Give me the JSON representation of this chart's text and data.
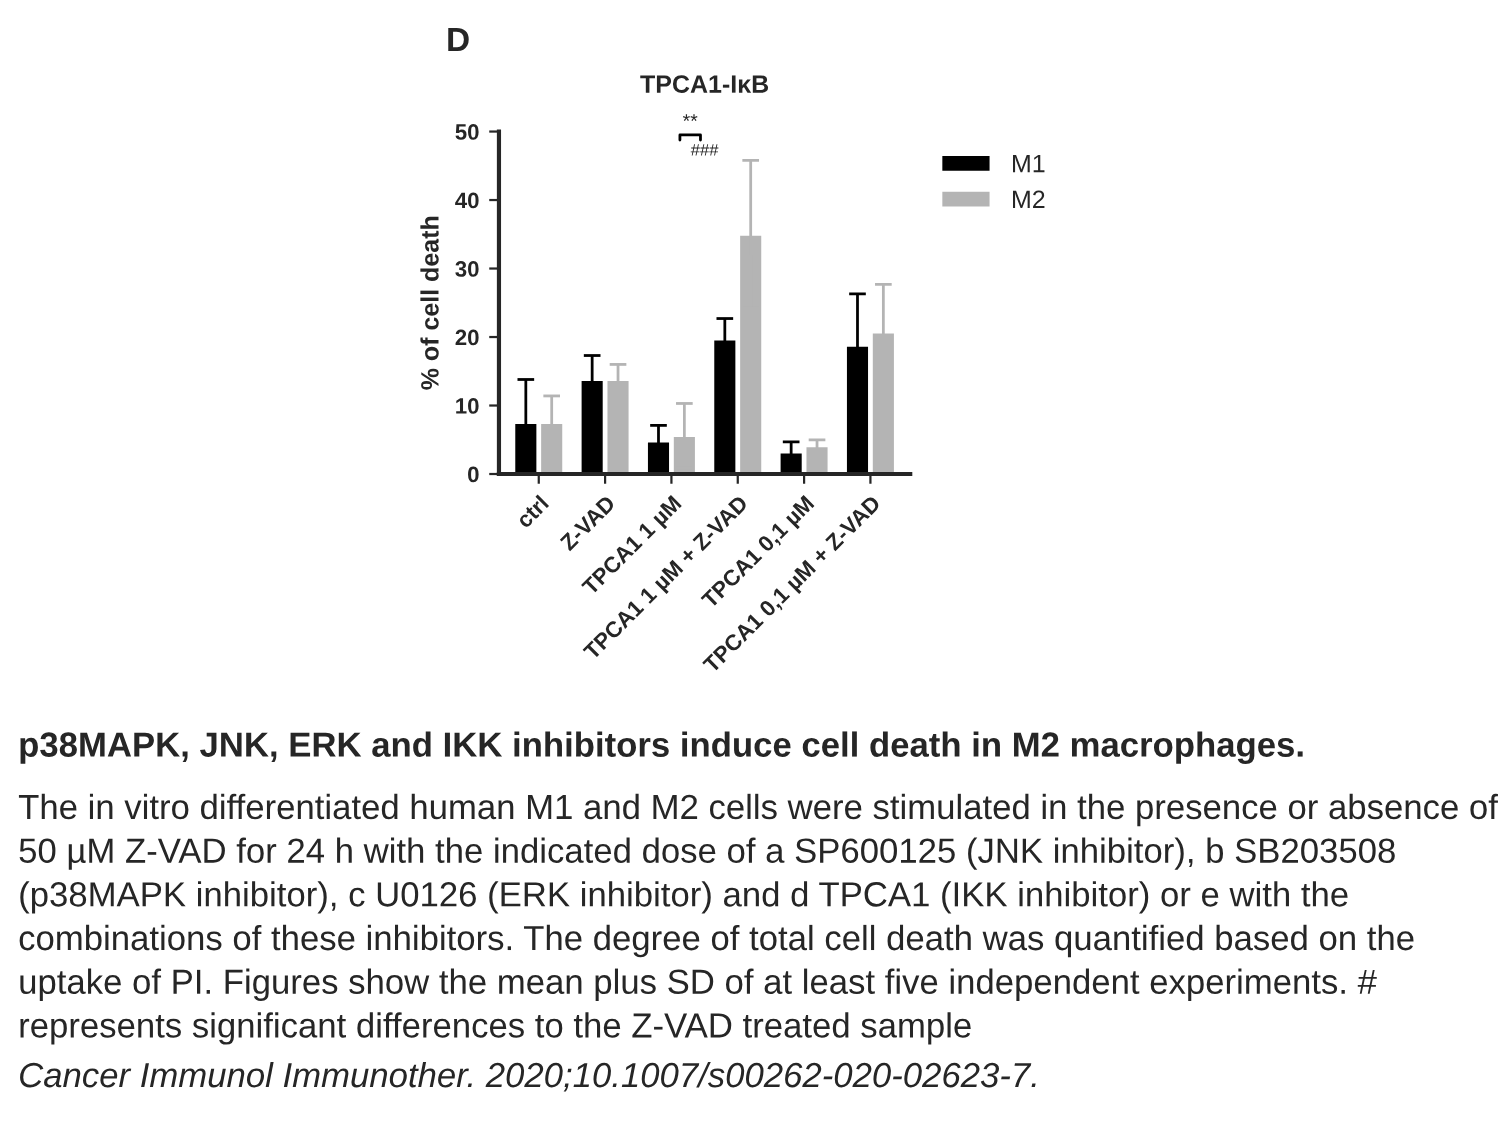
{
  "chart_data": {
    "type": "bar",
    "title": "TPCA1-IκB",
    "ylabel": "% of cell death",
    "categories": [
      "ctrl",
      "Z-VAD",
      "TPCA1 1 µM",
      "TPCA1 1 µM + Z-VAD",
      "TPCA1 0,1 µM",
      "TPCA1 0,1 µM + Z-VAD"
    ],
    "series": [
      {
        "name": "M1",
        "color": "#000000",
        "values": [
          7.5,
          13.8,
          4.8,
          19.7,
          3.2,
          18.8
        ],
        "errors": [
          6.3,
          3.5,
          2.3,
          3,
          1.5,
          7.5
        ]
      },
      {
        "name": "M2",
        "color": "#b4b4b4",
        "values": [
          7.5,
          13.8,
          5.6,
          35,
          4.1,
          20.7
        ],
        "errors": [
          3.9,
          2.2,
          4.7,
          10.8,
          0.9,
          7
        ]
      }
    ],
    "ylim": [
      0,
      50
    ],
    "yticks": [
      0,
      10,
      20,
      30,
      40,
      50
    ],
    "grid": false,
    "legend": "top right",
    "annotations": [
      "D",
      "**",
      "###",
      "p38MAPK, JNK, ERK and IKK inhibitors induce cell death in M2 macrophages.",
      "The in vitro differentiated human M1 and M2 cells were stimulated in the presence or absence of 50 µM Z-VAD for 24 h with the indicated dose of a SP600125 (JNK inhibitor), b SB203508 (p38MAPK inhibitor), c U0126 (ERK inhibitor) and d TPCA1 (IKK inhibitor) or e with the combinations of these inhibitors. The degree of total cell death was quantified based on the uptake of PI. Figures show the mean plus SD of at least five independent experiments. # represents significant differences to the Z-VAD treated sample",
      "Cancer Immunol Immunother. 2020;10.1007/s00262-020-02623-7."
    ]
  }
}
